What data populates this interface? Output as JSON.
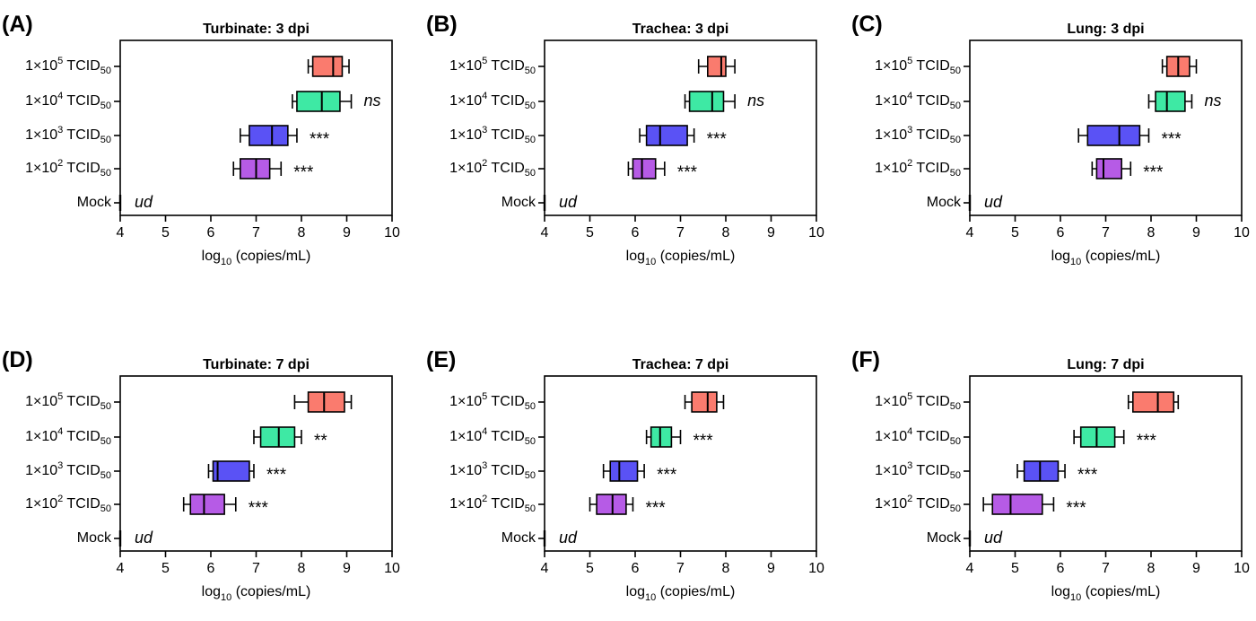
{
  "chart_data": [
    {
      "type": "box",
      "panel_label": "(A)",
      "title": "Turbinate: 3 dpi",
      "xlabel": "log10 (copies/mL)",
      "xlim": [
        4,
        10
      ],
      "xticks": [
        4,
        5,
        6,
        7,
        8,
        9,
        10
      ],
      "grid": false,
      "categories": [
        "1×10^5 TCID50",
        "1×10^4 TCID50",
        "1×10^3 TCID50",
        "1×10^2 TCID50",
        "Mock"
      ],
      "series": [
        {
          "category": "1×10^5 TCID50",
          "min": 8.15,
          "q1": 8.25,
          "median": 8.7,
          "q3": 8.9,
          "max": 9.05,
          "color": "#fa7b6e",
          "annotation": ""
        },
        {
          "category": "1×10^4 TCID50",
          "min": 7.8,
          "q1": 7.9,
          "median": 8.45,
          "q3": 8.85,
          "max": 9.1,
          "color": "#3ee9a4",
          "annotation": "ns"
        },
        {
          "category": "1×10^3 TCID50",
          "min": 6.65,
          "q1": 6.85,
          "median": 7.35,
          "q3": 7.7,
          "max": 7.9,
          "color": "#5a52f5",
          "annotation": "***"
        },
        {
          "category": "1×10^2 TCID50",
          "min": 6.5,
          "q1": 6.65,
          "median": 7.0,
          "q3": 7.3,
          "max": 7.55,
          "color": "#b65be6",
          "annotation": "***"
        },
        {
          "category": "Mock",
          "value": 4.0,
          "annotation": "ud"
        }
      ]
    },
    {
      "type": "box",
      "panel_label": "(B)",
      "title": "Trachea: 3 dpi",
      "xlabel": "log10 (copies/mL)",
      "xlim": [
        4,
        10
      ],
      "xticks": [
        4,
        5,
        6,
        7,
        8,
        9,
        10
      ],
      "grid": false,
      "categories": [
        "1×10^5 TCID50",
        "1×10^4 TCID50",
        "1×10^3 TCID50",
        "1×10^2 TCID50",
        "Mock"
      ],
      "series": [
        {
          "category": "1×10^5 TCID50",
          "min": 7.4,
          "q1": 7.6,
          "median": 7.9,
          "q3": 8.0,
          "max": 8.2,
          "color": "#fa7b6e",
          "annotation": ""
        },
        {
          "category": "1×10^4 TCID50",
          "min": 7.1,
          "q1": 7.2,
          "median": 7.7,
          "q3": 7.95,
          "max": 8.2,
          "color": "#3ee9a4",
          "annotation": "ns"
        },
        {
          "category": "1×10^3 TCID50",
          "min": 6.1,
          "q1": 6.25,
          "median": 6.55,
          "q3": 7.15,
          "max": 7.3,
          "color": "#5a52f5",
          "annotation": "***"
        },
        {
          "category": "1×10^2 TCID50",
          "min": 5.85,
          "q1": 5.95,
          "median": 6.15,
          "q3": 6.45,
          "max": 6.65,
          "color": "#b65be6",
          "annotation": "***"
        },
        {
          "category": "Mock",
          "value": 4.0,
          "annotation": "ud"
        }
      ]
    },
    {
      "type": "box",
      "panel_label": "(C)",
      "title": "Lung: 3 dpi",
      "xlabel": "log10 (copies/mL)",
      "xlim": [
        4,
        10
      ],
      "xticks": [
        4,
        5,
        6,
        7,
        8,
        9,
        10
      ],
      "grid": false,
      "categories": [
        "1×10^5 TCID50",
        "1×10^4 TCID50",
        "1×10^3 TCID50",
        "1×10^2 TCID50",
        "Mock"
      ],
      "series": [
        {
          "category": "1×10^5 TCID50",
          "min": 8.25,
          "q1": 8.35,
          "median": 8.6,
          "q3": 8.85,
          "max": 9.0,
          "color": "#fa7b6e",
          "annotation": ""
        },
        {
          "category": "1×10^4 TCID50",
          "min": 7.95,
          "q1": 8.1,
          "median": 8.35,
          "q3": 8.75,
          "max": 8.9,
          "color": "#3ee9a4",
          "annotation": "ns"
        },
        {
          "category": "1×10^3 TCID50",
          "min": 6.4,
          "q1": 6.6,
          "median": 7.3,
          "q3": 7.75,
          "max": 7.95,
          "color": "#5a52f5",
          "annotation": "***"
        },
        {
          "category": "1×10^2 TCID50",
          "min": 6.7,
          "q1": 6.8,
          "median": 6.95,
          "q3": 7.35,
          "max": 7.55,
          "color": "#b65be6",
          "annotation": "***"
        },
        {
          "category": "Mock",
          "value": 4.0,
          "annotation": "ud"
        }
      ]
    },
    {
      "type": "box",
      "panel_label": "(D)",
      "title": "Turbinate: 7 dpi",
      "xlabel": "log10 (copies/mL)",
      "xlim": [
        4,
        10
      ],
      "xticks": [
        4,
        5,
        6,
        7,
        8,
        9,
        10
      ],
      "grid": false,
      "categories": [
        "1×10^5 TCID50",
        "1×10^4 TCID50",
        "1×10^3 TCID50",
        "1×10^2 TCID50",
        "Mock"
      ],
      "series": [
        {
          "category": "1×10^5 TCID50",
          "min": 7.85,
          "q1": 8.15,
          "median": 8.5,
          "q3": 8.95,
          "max": 9.1,
          "color": "#fa7b6e",
          "annotation": ""
        },
        {
          "category": "1×10^4 TCID50",
          "min": 6.95,
          "q1": 7.1,
          "median": 7.5,
          "q3": 7.85,
          "max": 8.0,
          "color": "#3ee9a4",
          "annotation": "**"
        },
        {
          "category": "1×10^3 TCID50",
          "min": 5.95,
          "q1": 6.05,
          "median": 6.15,
          "q3": 6.85,
          "max": 6.95,
          "color": "#5a52f5",
          "annotation": "***"
        },
        {
          "category": "1×10^2 TCID50",
          "min": 5.4,
          "q1": 5.55,
          "median": 5.85,
          "q3": 6.3,
          "max": 6.55,
          "color": "#b65be6",
          "annotation": "***"
        },
        {
          "category": "Mock",
          "value": 4.0,
          "annotation": "ud"
        }
      ]
    },
    {
      "type": "box",
      "panel_label": "(E)",
      "title": "Trachea: 7 dpi",
      "xlabel": "log10 (copies/mL)",
      "xlim": [
        4,
        10
      ],
      "xticks": [
        4,
        5,
        6,
        7,
        8,
        9,
        10
      ],
      "grid": false,
      "categories": [
        "1×10^5 TCID50",
        "1×10^4 TCID50",
        "1×10^3 TCID50",
        "1×10^2 TCID50",
        "Mock"
      ],
      "series": [
        {
          "category": "1×10^5 TCID50",
          "min": 7.1,
          "q1": 7.25,
          "median": 7.6,
          "q3": 7.8,
          "max": 7.95,
          "color": "#fa7b6e",
          "annotation": ""
        },
        {
          "category": "1×10^4 TCID50",
          "min": 6.25,
          "q1": 6.35,
          "median": 6.55,
          "q3": 6.8,
          "max": 7.0,
          "color": "#3ee9a4",
          "annotation": "***"
        },
        {
          "category": "1×10^3 TCID50",
          "min": 5.3,
          "q1": 5.45,
          "median": 5.65,
          "q3": 6.05,
          "max": 6.2,
          "color": "#5a52f5",
          "annotation": "***"
        },
        {
          "category": "1×10^2 TCID50",
          "min": 5.0,
          "q1": 5.15,
          "median": 5.5,
          "q3": 5.8,
          "max": 5.95,
          "color": "#b65be6",
          "annotation": "***"
        },
        {
          "category": "Mock",
          "value": 4.0,
          "annotation": "ud"
        }
      ]
    },
    {
      "type": "box",
      "panel_label": "(F)",
      "title": "Lung: 7 dpi",
      "xlabel": "log10 (copies/mL)",
      "xlim": [
        4,
        10
      ],
      "xticks": [
        4,
        5,
        6,
        7,
        8,
        9,
        10
      ],
      "grid": false,
      "categories": [
        "1×10^5 TCID50",
        "1×10^4 TCID50",
        "1×10^3 TCID50",
        "1×10^2 TCID50",
        "Mock"
      ],
      "series": [
        {
          "category": "1×10^5 TCID50",
          "min": 7.5,
          "q1": 7.6,
          "median": 8.15,
          "q3": 8.5,
          "max": 8.6,
          "color": "#fa7b6e",
          "annotation": ""
        },
        {
          "category": "1×10^4 TCID50",
          "min": 6.3,
          "q1": 6.45,
          "median": 6.8,
          "q3": 7.2,
          "max": 7.4,
          "color": "#3ee9a4",
          "annotation": "***"
        },
        {
          "category": "1×10^3 TCID50",
          "min": 5.05,
          "q1": 5.2,
          "median": 5.55,
          "q3": 5.95,
          "max": 6.1,
          "color": "#5a52f5",
          "annotation": "***"
        },
        {
          "category": "1×10^2 TCID50",
          "min": 4.3,
          "q1": 4.5,
          "median": 4.9,
          "q3": 5.6,
          "max": 5.85,
          "color": "#b65be6",
          "annotation": "***"
        },
        {
          "category": "Mock",
          "value": 4.0,
          "annotation": "ud"
        }
      ]
    }
  ]
}
